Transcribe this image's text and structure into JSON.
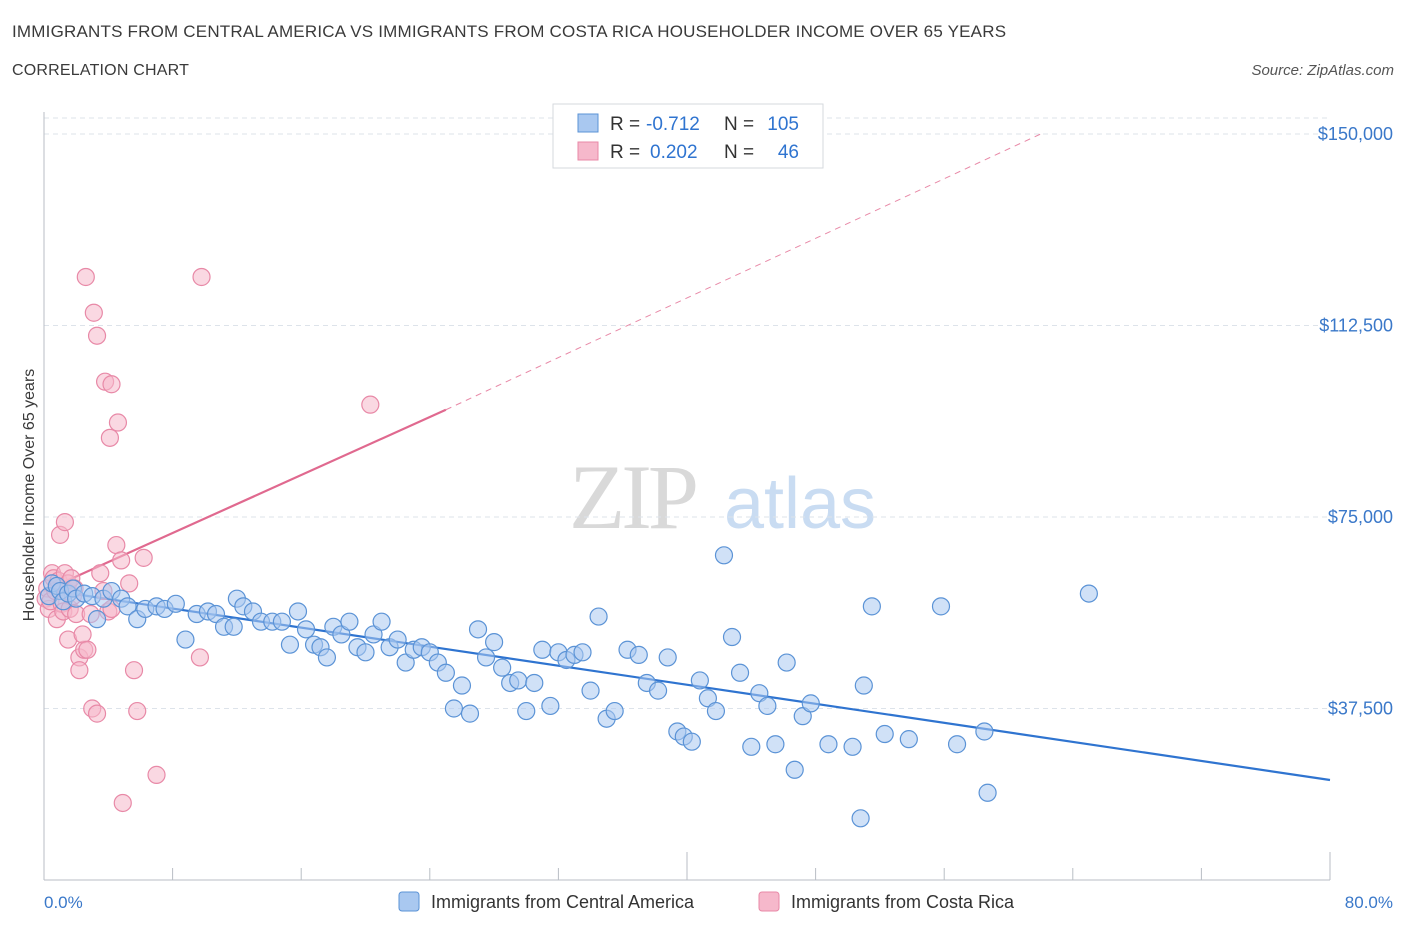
{
  "header": {
    "title": "IMMIGRANTS FROM CENTRAL AMERICA VS IMMIGRANTS FROM COSTA RICA HOUSEHOLDER INCOME OVER 65 YEARS",
    "subtitle": "CORRELATION CHART",
    "source": "Source: ZipAtlas.com"
  },
  "watermark": {
    "zip": "ZIP",
    "atlas": "atlas"
  },
  "colors": {
    "blue_fill": "#a9c8f0",
    "blue_stroke": "#5b93d6",
    "blue_line": "#2f74d0",
    "pink_fill": "#f6b8cb",
    "pink_stroke": "#e889a7",
    "pink_line": "#e0698f",
    "axis_label": "#3a78c9",
    "grid": "#dde3ea"
  },
  "legend_box": {
    "rows": [
      {
        "r_label": "R = ",
        "r_value": "-0.712",
        "n_label": "N = ",
        "n_value": "105"
      },
      {
        "r_label": "R = ",
        "r_value": "0.202",
        "n_label": "N = ",
        "n_value": "46"
      }
    ]
  },
  "bottom_legend": [
    "Immigrants from Central America",
    "Immigrants from Costa Rica"
  ],
  "chart_data": {
    "type": "scatter",
    "xlabel": "",
    "ylabel": "Householder Income Over 65 years",
    "xlim": [
      0,
      80
    ],
    "ylim": [
      0,
      150000
    ],
    "x_tick_labels": [
      "0.0%",
      "80.0%"
    ],
    "y_ticks": [
      37500,
      75000,
      112500,
      150000
    ],
    "y_tick_labels": [
      "$37,500",
      "$75,000",
      "$112,500",
      "$150,000"
    ],
    "grid": true,
    "legend_position": "top-center",
    "series": [
      {
        "name": "Immigrants from Central America",
        "color": "#a9c8f0",
        "points": [
          [
            0.3,
            59500
          ],
          [
            0.5,
            62000
          ],
          [
            0.8,
            61500
          ],
          [
            1.0,
            60500
          ],
          [
            1.2,
            58500
          ],
          [
            1.5,
            60000
          ],
          [
            1.8,
            61000
          ],
          [
            2.0,
            59000
          ],
          [
            2.5,
            60000
          ],
          [
            3.0,
            59500
          ],
          [
            3.3,
            55000
          ],
          [
            3.7,
            59000
          ],
          [
            4.2,
            60500
          ],
          [
            4.8,
            59000
          ],
          [
            5.2,
            57500
          ],
          [
            5.8,
            55000
          ],
          [
            6.3,
            57000
          ],
          [
            7.0,
            57500
          ],
          [
            7.5,
            57000
          ],
          [
            8.2,
            58000
          ],
          [
            8.8,
            51000
          ],
          [
            9.5,
            56000
          ],
          [
            10.2,
            56500
          ],
          [
            10.7,
            56000
          ],
          [
            11.2,
            53500
          ],
          [
            11.8,
            53500
          ],
          [
            12.0,
            59000
          ],
          [
            12.4,
            57500
          ],
          [
            13.0,
            56500
          ],
          [
            13.5,
            54500
          ],
          [
            14.2,
            54500
          ],
          [
            14.8,
            54500
          ],
          [
            15.3,
            50000
          ],
          [
            15.8,
            56500
          ],
          [
            16.3,
            53000
          ],
          [
            16.8,
            50000
          ],
          [
            17.2,
            49500
          ],
          [
            17.6,
            47500
          ],
          [
            18.0,
            53500
          ],
          [
            18.5,
            52000
          ],
          [
            19.0,
            54500
          ],
          [
            19.5,
            49500
          ],
          [
            20.0,
            48500
          ],
          [
            20.5,
            52000
          ],
          [
            21.0,
            54500
          ],
          [
            21.5,
            49500
          ],
          [
            22.0,
            51000
          ],
          [
            22.5,
            46500
          ],
          [
            23.0,
            49000
          ],
          [
            23.5,
            49500
          ],
          [
            24.0,
            48500
          ],
          [
            24.5,
            46500
          ],
          [
            25.0,
            44500
          ],
          [
            25.5,
            37500
          ],
          [
            26.0,
            42000
          ],
          [
            26.5,
            36500
          ],
          [
            27.0,
            53000
          ],
          [
            27.5,
            47500
          ],
          [
            28.0,
            50500
          ],
          [
            28.5,
            45500
          ],
          [
            29.0,
            42500
          ],
          [
            29.5,
            43000
          ],
          [
            30.0,
            37000
          ],
          [
            30.5,
            42500
          ],
          [
            31.0,
            49000
          ],
          [
            31.5,
            38000
          ],
          [
            32.0,
            48500
          ],
          [
            32.5,
            47000
          ],
          [
            33.0,
            48000
          ],
          [
            33.5,
            48500
          ],
          [
            34.0,
            41000
          ],
          [
            34.5,
            55500
          ],
          [
            35.0,
            35500
          ],
          [
            35.5,
            37000
          ],
          [
            36.3,
            49000
          ],
          [
            37.0,
            48000
          ],
          [
            37.5,
            42500
          ],
          [
            38.2,
            41000
          ],
          [
            38.8,
            47500
          ],
          [
            39.4,
            33000
          ],
          [
            39.8,
            32000
          ],
          [
            40.3,
            31000
          ],
          [
            40.8,
            43000
          ],
          [
            41.3,
            39500
          ],
          [
            41.8,
            37000
          ],
          [
            42.3,
            67500
          ],
          [
            42.8,
            51500
          ],
          [
            43.3,
            44500
          ],
          [
            44.0,
            30000
          ],
          [
            44.5,
            40500
          ],
          [
            45.0,
            38000
          ],
          [
            45.5,
            30500
          ],
          [
            46.2,
            46500
          ],
          [
            46.7,
            25500
          ],
          [
            47.2,
            36000
          ],
          [
            47.7,
            38500
          ],
          [
            48.8,
            30500
          ],
          [
            50.3,
            30000
          ],
          [
            51.0,
            42000
          ],
          [
            50.8,
            16000
          ],
          [
            51.5,
            57500
          ],
          [
            52.3,
            32500
          ],
          [
            53.8,
            31500
          ],
          [
            55.8,
            57500
          ],
          [
            56.8,
            30500
          ],
          [
            58.5,
            33000
          ],
          [
            58.7,
            21000
          ],
          [
            65.0,
            60000
          ]
        ],
        "trend": {
          "x": [
            0,
            80
          ],
          "y": [
            60800,
            23500
          ]
        }
      },
      {
        "name": "Immigrants from Costa Rica",
        "color": "#f6b8cb",
        "points": [
          [
            0.1,
            59000
          ],
          [
            0.2,
            61000
          ],
          [
            0.3,
            57000
          ],
          [
            0.4,
            58500
          ],
          [
            0.5,
            64000
          ],
          [
            0.6,
            63000
          ],
          [
            0.7,
            60500
          ],
          [
            0.8,
            55000
          ],
          [
            0.9,
            62500
          ],
          [
            1.0,
            71500
          ],
          [
            1.1,
            58000
          ],
          [
            1.2,
            56500
          ],
          [
            1.3,
            64000
          ],
          [
            1.4,
            60500
          ],
          [
            1.5,
            62000
          ],
          [
            1.6,
            57000
          ],
          [
            1.7,
            63000
          ],
          [
            1.8,
            59500
          ],
          [
            1.9,
            61000
          ],
          [
            2.0,
            56000
          ],
          [
            1.5,
            51000
          ],
          [
            2.2,
            47500
          ],
          [
            1.3,
            74000
          ],
          [
            2.5,
            49000
          ],
          [
            2.2,
            45000
          ],
          [
            2.4,
            52000
          ],
          [
            2.7,
            49000
          ],
          [
            2.9,
            56000
          ],
          [
            3.0,
            37500
          ],
          [
            3.3,
            36500
          ],
          [
            3.5,
            64000
          ],
          [
            3.7,
            60500
          ],
          [
            4.0,
            56500
          ],
          [
            4.2,
            57000
          ],
          [
            4.5,
            69500
          ],
          [
            4.8,
            66500
          ],
          [
            5.3,
            62000
          ],
          [
            5.6,
            45000
          ],
          [
            5.8,
            37000
          ],
          [
            6.2,
            67000
          ],
          [
            7.0,
            24500
          ],
          [
            4.9,
            19000
          ],
          [
            2.6,
            122000
          ],
          [
            3.1,
            115000
          ],
          [
            3.3,
            110500
          ],
          [
            3.8,
            101500
          ],
          [
            4.2,
            101000
          ],
          [
            4.6,
            93500
          ],
          [
            4.1,
            90500
          ],
          [
            9.8,
            122000
          ],
          [
            9.7,
            47500
          ],
          [
            20.3,
            97000
          ]
        ],
        "trend": {
          "x": [
            0,
            25
          ],
          "y": [
            60500,
            96000
          ]
        },
        "trend_extended": {
          "x": [
            25,
            62
          ],
          "y": [
            96000,
            150000
          ]
        }
      }
    ]
  }
}
